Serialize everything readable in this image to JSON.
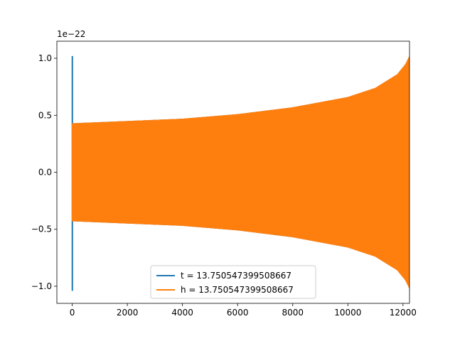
{
  "chart_data": {
    "type": "line",
    "title": "",
    "xlabel": "",
    "ylabel": "",
    "y_offset_label": "1e−22",
    "xlim": [
      -556,
      12236
    ],
    "ylim": [
      -1.15,
      1.15
    ],
    "xticks": [
      0,
      2000,
      4000,
      6000,
      8000,
      10000,
      12000
    ],
    "xtick_labels": [
      "0",
      "2000",
      "4000",
      "6000",
      "8000",
      "10000",
      "12000"
    ],
    "yticks": [
      -1.0,
      -0.5,
      0.0,
      0.5,
      1.0
    ],
    "ytick_labels": [
      "−1.0",
      "−0.5",
      "0.0",
      "0.5",
      "1.0"
    ],
    "grid": false,
    "legend_position": "lower center",
    "series": [
      {
        "name": "t = 13.750547399508667",
        "color": "#1f77b4",
        "description": "chirp waveform; early segment spikes to ±1.03 near x=0",
        "x_range": [
          0,
          12280
        ],
        "spike": {
          "x": 5,
          "y_max": 1.02,
          "y_min": -1.04
        }
      },
      {
        "name": "h = 13.750547399508667",
        "color": "#ff7f0e",
        "description": "gravitational-wave chirp with growing envelope",
        "x_range": [
          0,
          12280
        ],
        "envelope": [
          {
            "x": 0,
            "amp": 0.43
          },
          {
            "x": 2000,
            "amp": 0.45
          },
          {
            "x": 4000,
            "amp": 0.47
          },
          {
            "x": 6000,
            "amp": 0.51
          },
          {
            "x": 8000,
            "amp": 0.57
          },
          {
            "x": 10000,
            "amp": 0.66
          },
          {
            "x": 11000,
            "amp": 0.74
          },
          {
            "x": 11800,
            "amp": 0.86
          },
          {
            "x": 12100,
            "amp": 0.95
          },
          {
            "x": 12280,
            "amp": 1.04
          }
        ]
      }
    ]
  }
}
